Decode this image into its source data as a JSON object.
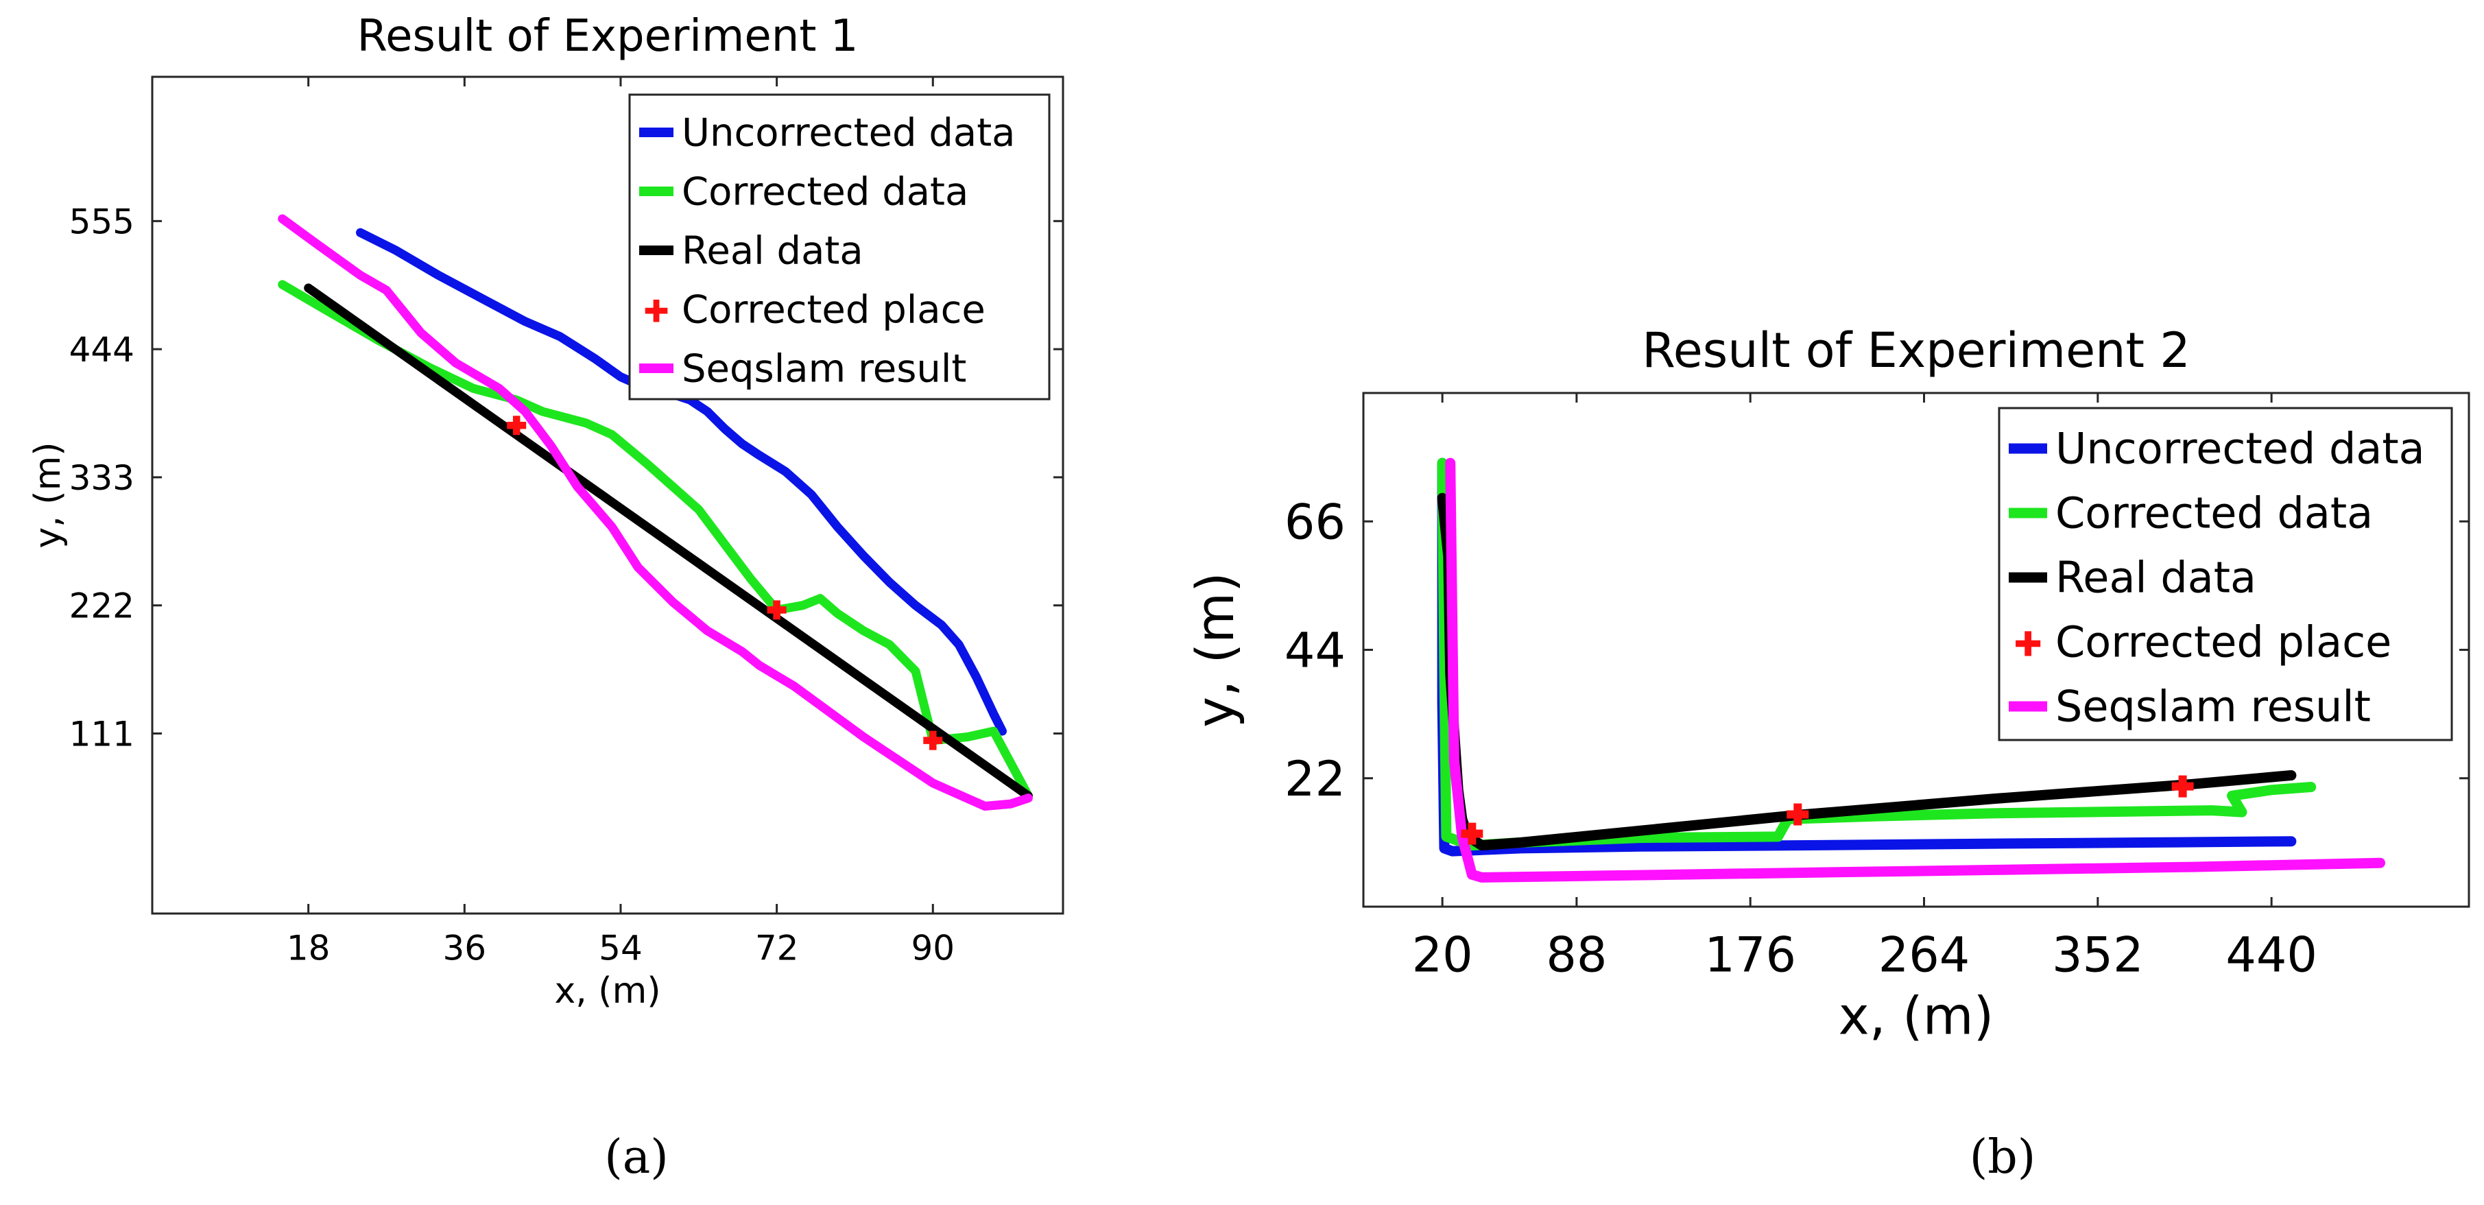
{
  "colors": {
    "uncorrected": "#0a14e6",
    "corrected": "#1ee61e",
    "real": "#000000",
    "place": "#ff1010",
    "seqslam": "#ff10ff"
  },
  "legend_marker_symbol": "✚",
  "captions": {
    "a": "(a)",
    "b": "(b)"
  },
  "chart_data": [
    {
      "type": "line",
      "title": "Result of Experiment 1",
      "xlabel": "x, (m)",
      "ylabel": "y, (m)",
      "xlim": [
        0,
        105
      ],
      "ylim": [
        -45,
        680
      ],
      "xticks": [
        18,
        36,
        54,
        72,
        90
      ],
      "yticks": [
        111,
        222,
        333,
        444,
        555
      ],
      "legend_position": "top-right",
      "legend": [
        "Uncorrected data",
        "Corrected data",
        "Real data",
        "Corrected place",
        "Seqslam result"
      ],
      "series": [
        {
          "name": "Uncorrected data",
          "key": "uncorrected",
          "points": [
            [
              24,
              545
            ],
            [
              28,
              530
            ],
            [
              33,
              508
            ],
            [
              38,
              488
            ],
            [
              43,
              468
            ],
            [
              47,
              455
            ],
            [
              51,
              436
            ],
            [
              54,
              420
            ],
            [
              57,
              410
            ],
            [
              60,
              405
            ],
            [
              62,
              400
            ],
            [
              64,
              390
            ],
            [
              66,
              375
            ],
            [
              68,
              362
            ],
            [
              70,
              352
            ],
            [
              73,
              338
            ],
            [
              76,
              318
            ],
            [
              79,
              290
            ],
            [
              82,
              265
            ],
            [
              85,
              242
            ],
            [
              88,
              222
            ],
            [
              91,
              205
            ],
            [
              93,
              188
            ],
            [
              95,
              160
            ],
            [
              97,
              128
            ],
            [
              98,
              113
            ]
          ]
        },
        {
          "name": "Corrected data",
          "key": "corrected",
          "points": [
            [
              15,
              500
            ],
            [
              20,
              478
            ],
            [
              26,
              452
            ],
            [
              32,
              428
            ],
            [
              37,
              410
            ],
            [
              42,
              400
            ],
            [
              45,
              390
            ],
            [
              50,
              380
            ],
            [
              53,
              370
            ],
            [
              57,
              345
            ],
            [
              60,
              325
            ],
            [
              63,
              305
            ],
            [
              66,
              275
            ],
            [
              69,
              245
            ],
            [
              72,
              218
            ],
            [
              75,
              222
            ],
            [
              77,
              228
            ],
            [
              79,
              215
            ],
            [
              82,
              200
            ],
            [
              85,
              188
            ],
            [
              88,
              165
            ],
            [
              90,
              105
            ],
            [
              94,
              108
            ],
            [
              97,
              113
            ],
            [
              99,
              85
            ],
            [
              101,
              57
            ]
          ]
        },
        {
          "name": "Real data",
          "key": "real",
          "points": [
            [
              18,
              497
            ],
            [
              101,
              57
            ]
          ]
        },
        {
          "name": "Seqslam result",
          "key": "seqslam",
          "points": [
            [
              15,
              557
            ],
            [
              19,
              535
            ],
            [
              24,
              508
            ],
            [
              27,
              495
            ],
            [
              31,
              458
            ],
            [
              35,
              432
            ],
            [
              40,
              410
            ],
            [
              43,
              390
            ],
            [
              46,
              360
            ],
            [
              49,
              325
            ],
            [
              53,
              290
            ],
            [
              56,
              255
            ],
            [
              60,
              225
            ],
            [
              64,
              200
            ],
            [
              68,
              182
            ],
            [
              70,
              170
            ],
            [
              74,
              152
            ],
            [
              78,
              130
            ],
            [
              82,
              108
            ],
            [
              86,
              88
            ],
            [
              90,
              68
            ],
            [
              93,
              58
            ],
            [
              96,
              48
            ],
            [
              99,
              50
            ],
            [
              101,
              55
            ]
          ]
        }
      ],
      "markers": {
        "name": "Corrected place",
        "points": [
          [
            42,
            378
          ],
          [
            72,
            218
          ],
          [
            90,
            105
          ]
        ]
      }
    },
    {
      "type": "line",
      "title": "Result of Experiment 2",
      "xlabel": "x, (m)",
      "ylabel": "y, (m)",
      "xlim": [
        -20,
        540
      ],
      "ylim": [
        0,
        88
      ],
      "xticks": [
        20,
        88,
        176,
        264,
        352,
        440
      ],
      "yticks": [
        22,
        44,
        66
      ],
      "legend_position": "top-right",
      "legend": [
        "Uncorrected data",
        "Corrected data",
        "Real data",
        "Corrected place",
        "Seqslam result"
      ],
      "series": [
        {
          "name": "Uncorrected data",
          "key": "uncorrected",
          "points": [
            [
              20,
              76
            ],
            [
              20,
              35
            ],
            [
              21,
              10
            ],
            [
              25,
              9.5
            ],
            [
              60,
              10
            ],
            [
              120,
              10.3
            ],
            [
              200,
              10.5
            ],
            [
              300,
              10.8
            ],
            [
              380,
              11
            ],
            [
              450,
              11.2
            ]
          ]
        },
        {
          "name": "Corrected data",
          "key": "corrected",
          "points": [
            [
              20,
              76
            ],
            [
              21,
              40
            ],
            [
              22,
              12
            ],
            [
              35,
              10.5
            ],
            [
              60,
              11
            ],
            [
              120,
              11.8
            ],
            [
              190,
              12
            ],
            [
              195,
              15
            ],
            [
              240,
              15.5
            ],
            [
              300,
              16
            ],
            [
              410,
              16.5
            ],
            [
              425,
              16.2
            ],
            [
              420,
              19
            ],
            [
              440,
              20
            ],
            [
              460,
              20.5
            ]
          ]
        },
        {
          "name": "Real data",
          "key": "real",
          "points": [
            [
              20,
              70
            ],
            [
              23,
              60
            ],
            [
              24,
              40
            ],
            [
              26,
              30
            ],
            [
              28,
              20
            ],
            [
              30,
              15
            ],
            [
              33,
              12
            ],
            [
              40,
              10.5
            ],
            [
              60,
              11
            ],
            [
              200,
              15.7
            ],
            [
              300,
              18.5
            ],
            [
              400,
              21
            ],
            [
              450,
              22.5
            ]
          ]
        },
        {
          "name": "Seqslam result",
          "key": "seqslam",
          "points": [
            [
              24,
              76
            ],
            [
              25,
              50
            ],
            [
              26,
              25
            ],
            [
              30,
              12
            ],
            [
              35,
              5.5
            ],
            [
              40,
              5
            ],
            [
              100,
              5.3
            ],
            [
              200,
              5.8
            ],
            [
              300,
              6.3
            ],
            [
              400,
              6.8
            ],
            [
              495,
              7.5
            ]
          ]
        }
      ],
      "markers": {
        "name": "Corrected place",
        "points": [
          [
            35,
            12.5
          ],
          [
            200,
            15.8
          ],
          [
            395,
            20.6
          ]
        ]
      }
    }
  ]
}
